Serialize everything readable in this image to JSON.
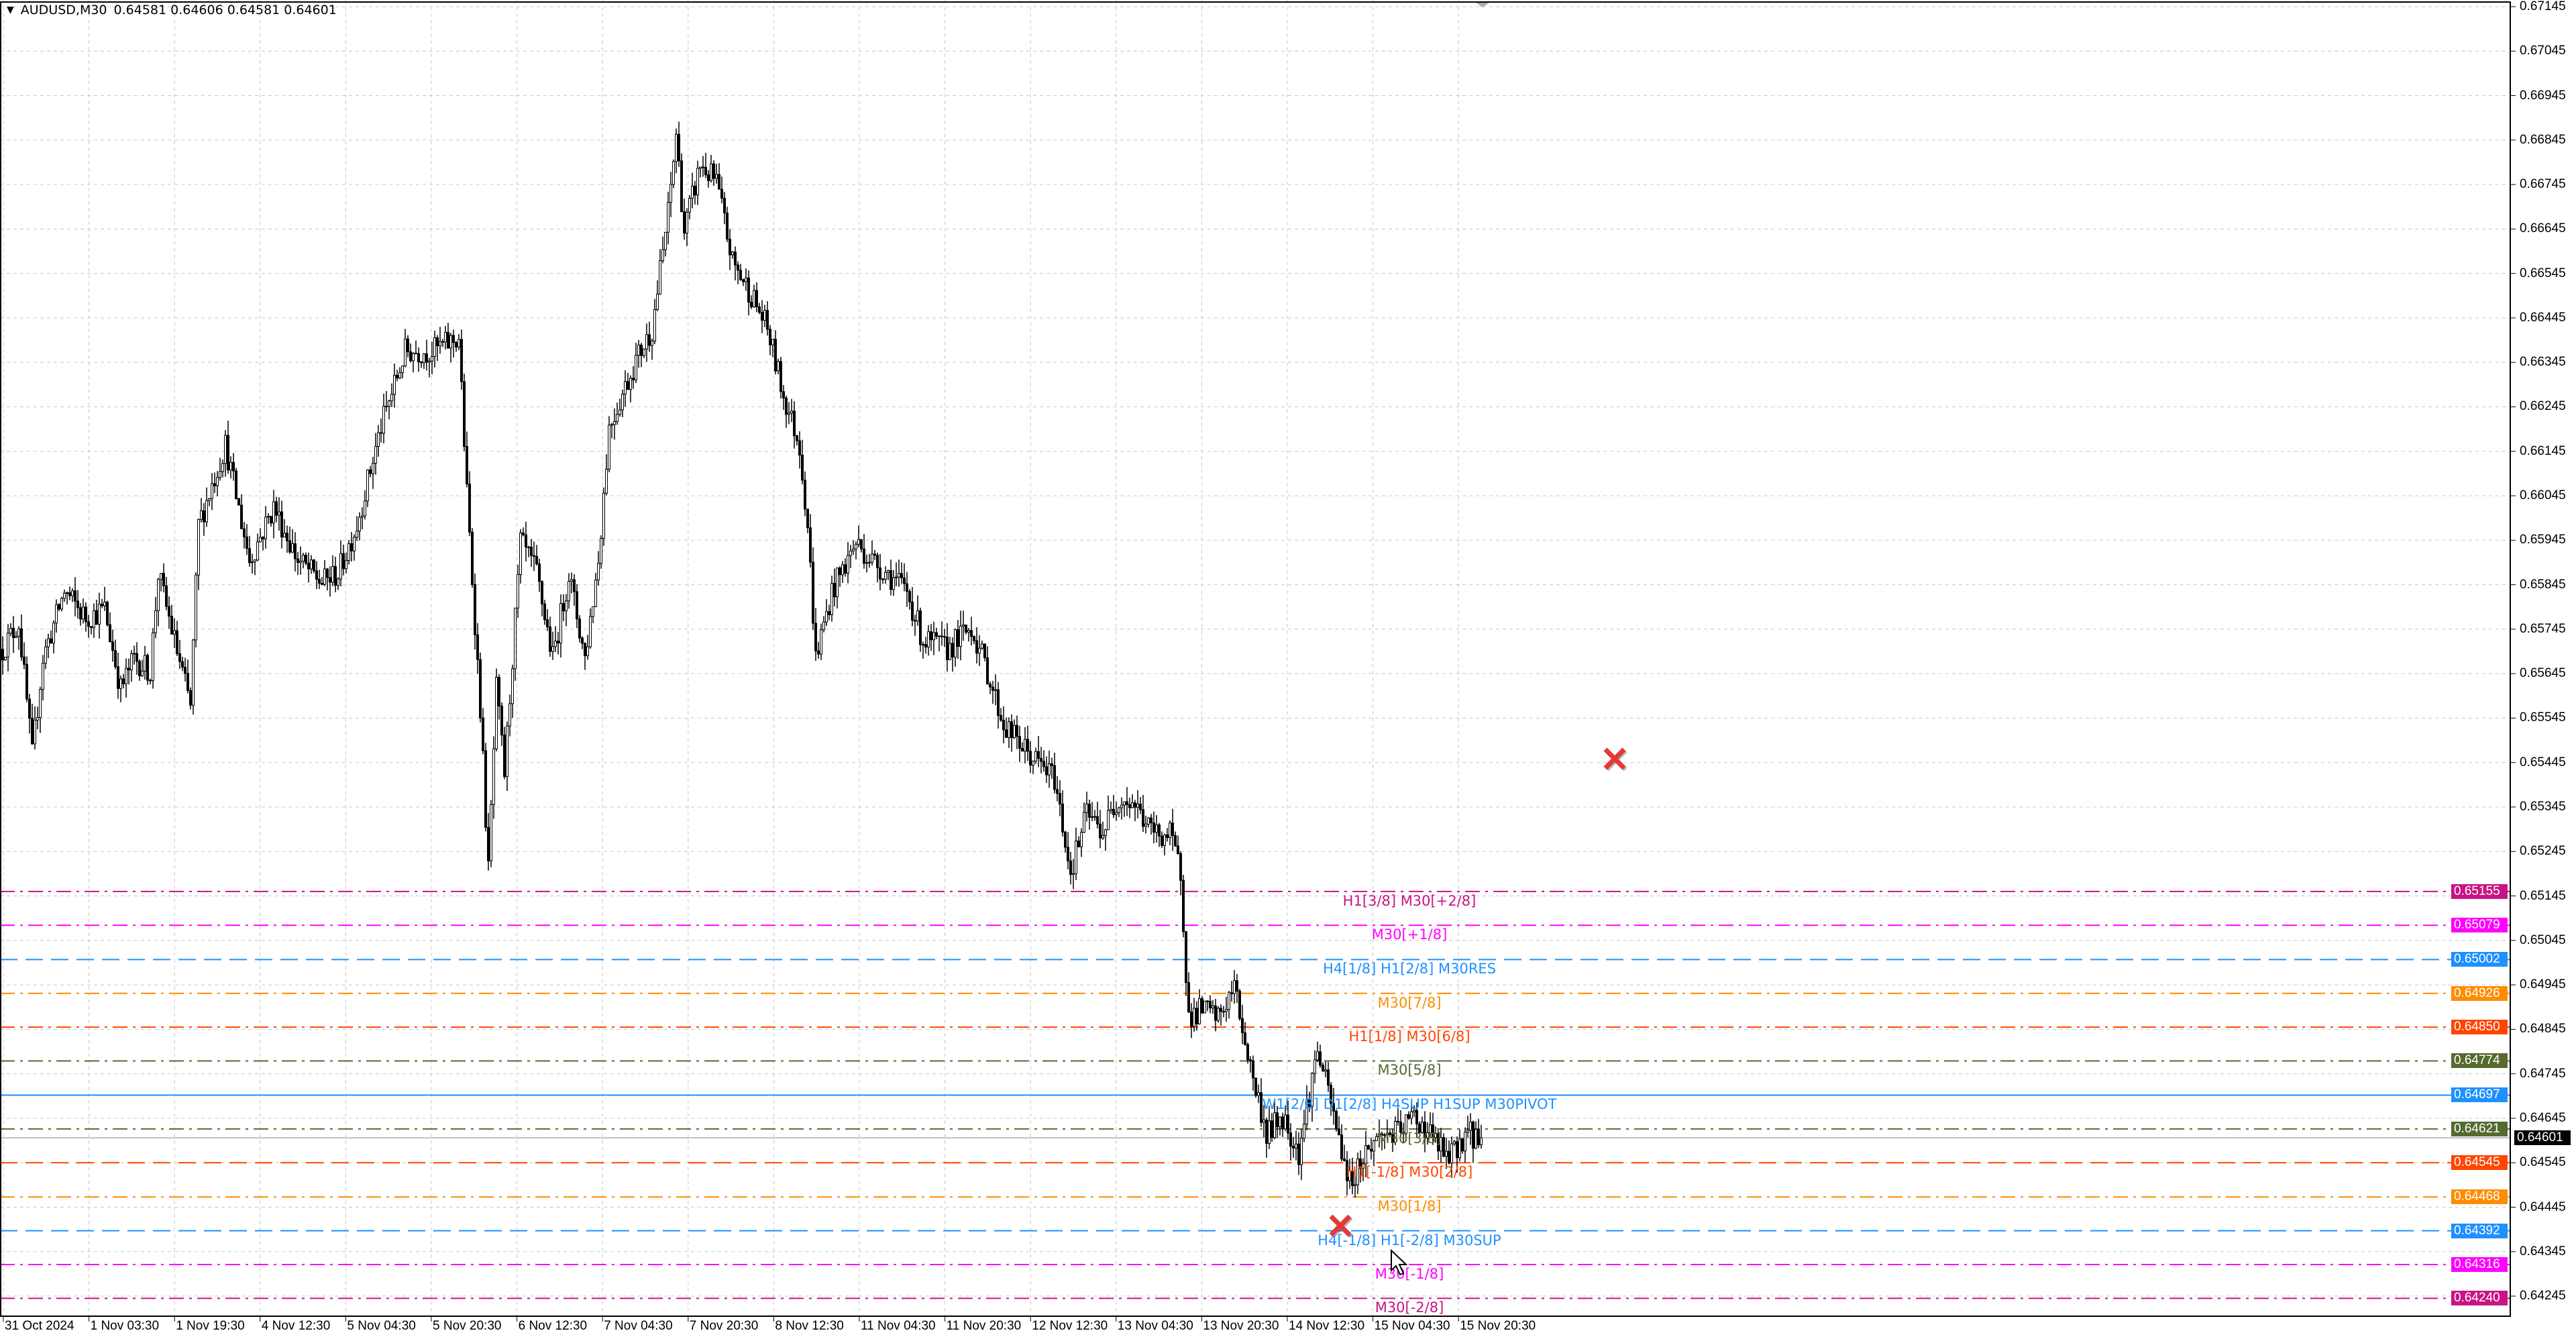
{
  "header": {
    "symbol": "AUDUSD,M30",
    "open": "0.64581",
    "high": "0.64606",
    "low": "0.64581",
    "close": "0.64601"
  },
  "chart_data": {
    "type": "candlestick",
    "timeframe": "M30",
    "price_range": [
      0.6424,
      0.67145
    ],
    "price_ticks": [
      "0.67145",
      "0.67045",
      "0.66945",
      "0.66845",
      "0.66745",
      "0.66645",
      "0.66545",
      "0.66445",
      "0.66345",
      "0.66245",
      "0.66145",
      "0.66045",
      "0.65945",
      "0.65845",
      "0.65745",
      "0.65645",
      "0.65545",
      "0.65445",
      "0.65345",
      "0.65245",
      "0.65145",
      "0.65045",
      "0.64945",
      "0.64845",
      "0.64745",
      "0.64645",
      "0.64545",
      "0.64445",
      "0.64345",
      "0.64245"
    ],
    "time_ticks": [
      "31 Oct 2024",
      "1 Nov 03:30",
      "1 Nov 19:30",
      "4 Nov 12:30",
      "5 Nov 04:30",
      "5 Nov 20:30",
      "6 Nov 12:30",
      "7 Nov 04:30",
      "7 Nov 20:30",
      "8 Nov 12:30",
      "11 Nov 04:30",
      "11 Nov 20:30",
      "12 Nov 12:30",
      "13 Nov 04:30",
      "13 Nov 20:30",
      "14 Nov 12:30",
      "15 Nov 04:30",
      "15 Nov 20:30"
    ],
    "approx_close_path": [
      [
        0,
        0.657
      ],
      [
        6,
        0.6576
      ],
      [
        11,
        0.6546
      ],
      [
        15,
        0.6568
      ],
      [
        23,
        0.6583
      ],
      [
        31,
        0.6577
      ],
      [
        38,
        0.6579
      ],
      [
        44,
        0.6561
      ],
      [
        49,
        0.6568
      ],
      [
        55,
        0.6565
      ],
      [
        58,
        0.6587
      ],
      [
        64,
        0.6572
      ],
      [
        70,
        0.6557
      ],
      [
        73,
        0.6598
      ],
      [
        83,
        0.6616
      ],
      [
        92,
        0.659
      ],
      [
        101,
        0.6602
      ],
      [
        110,
        0.659
      ],
      [
        119,
        0.6585
      ],
      [
        125,
        0.6587
      ],
      [
        132,
        0.6598
      ],
      [
        141,
        0.662
      ],
      [
        150,
        0.6637
      ],
      [
        160,
        0.6637
      ],
      [
        170,
        0.664
      ],
      [
        173,
        0.6605
      ],
      [
        178,
        0.6557
      ],
      [
        181,
        0.652
      ],
      [
        184,
        0.6561
      ],
      [
        187,
        0.6542
      ],
      [
        193,
        0.6594
      ],
      [
        199,
        0.6587
      ],
      [
        205,
        0.6568
      ],
      [
        211,
        0.6587
      ],
      [
        217,
        0.6568
      ],
      [
        222,
        0.659
      ],
      [
        226,
        0.662
      ],
      [
        236,
        0.6635
      ],
      [
        242,
        0.6642
      ],
      [
        248,
        0.6668
      ],
      [
        251,
        0.6686
      ],
      [
        254,
        0.6664
      ],
      [
        260,
        0.6679
      ],
      [
        266,
        0.6675
      ],
      [
        272,
        0.6657
      ],
      [
        278,
        0.6651
      ],
      [
        285,
        0.6642
      ],
      [
        291,
        0.6627
      ],
      [
        297,
        0.6616
      ],
      [
        300,
        0.6598
      ],
      [
        303,
        0.6568
      ],
      [
        309,
        0.6583
      ],
      [
        318,
        0.6594
      ],
      [
        324,
        0.659
      ],
      [
        330,
        0.6587
      ],
      [
        337,
        0.6583
      ],
      [
        343,
        0.6572
      ],
      [
        352,
        0.657
      ],
      [
        361,
        0.6575
      ],
      [
        367,
        0.6565
      ],
      [
        373,
        0.6553
      ],
      [
        383,
        0.6546
      ],
      [
        392,
        0.6541
      ],
      [
        398,
        0.652
      ],
      [
        404,
        0.6533
      ],
      [
        410,
        0.6529
      ],
      [
        416,
        0.6537
      ],
      [
        422,
        0.6535
      ],
      [
        428,
        0.6529
      ],
      [
        435,
        0.6528
      ],
      [
        439,
        0.652
      ],
      [
        442,
        0.6487
      ],
      [
        447,
        0.6489
      ],
      [
        453,
        0.6487
      ],
      [
        459,
        0.6494
      ],
      [
        465,
        0.6476
      ],
      [
        471,
        0.6461
      ],
      [
        477,
        0.6465
      ],
      [
        483,
        0.6457
      ],
      [
        490,
        0.648
      ],
      [
        496,
        0.6465
      ],
      [
        502,
        0.645
      ],
      [
        508,
        0.6457
      ],
      [
        514,
        0.6461
      ],
      [
        520,
        0.6461
      ],
      [
        526,
        0.6465
      ],
      [
        532,
        0.6461
      ],
      [
        539,
        0.6455
      ],
      [
        545,
        0.6461
      ],
      [
        551,
        0.64601
      ]
    ],
    "levels": [
      {
        "price": "0.65155",
        "label": "H1[3/8] M30[+2/8]",
        "color": "#c71585",
        "style": "dashdot"
      },
      {
        "price": "0.65079",
        "label": "M30[+1/8]",
        "color": "#ff00ff",
        "style": "dashdot"
      },
      {
        "price": "0.65002",
        "label": "H4[1/8] H1[2/8] M30RES",
        "color": "#1e90ff",
        "style": "dash"
      },
      {
        "price": "0.64926",
        "label": "M30[7/8]",
        "color": "#ff8c00",
        "style": "dashdot"
      },
      {
        "price": "0.64850",
        "label": "H1[1/8] M30[6/8]",
        "color": "#ff4500",
        "style": "dashdot"
      },
      {
        "price": "0.64774",
        "label": "M30[5/8]",
        "color": "#556b2f",
        "style": "dashdot"
      },
      {
        "price": "0.64697",
        "label": "W1[2/8] D1[2/8] H4SUP H1SUP M30PIVOT",
        "color": "#1e90ff",
        "style": "solid"
      },
      {
        "price": "0.64621",
        "label": "M30[3/8]",
        "color": "#556b2f",
        "style": "dashdot"
      },
      {
        "price": "0.64545",
        "label": "H1[-1/8] M30[2/8]",
        "color": "#ff4500",
        "style": "dash"
      },
      {
        "price": "0.64468",
        "label": "M30[1/8]",
        "color": "#ff8c00",
        "style": "dashdot"
      },
      {
        "price": "0.64392",
        "label": "H4[-1/8] H1[-2/8] M30SUP",
        "color": "#1e90ff",
        "style": "dash"
      },
      {
        "price": "0.64316",
        "label": "M30[-1/8]",
        "color": "#ff00ff",
        "style": "dashdot"
      },
      {
        "price": "0.64240",
        "label": "M30[-2/8]",
        "color": "#c71585",
        "style": "dashdot"
      }
    ],
    "bid_price": "0.64601",
    "bid_color": "#000000",
    "markers": [
      {
        "icon": "red-x-icon",
        "price": 0.6545
      },
      {
        "icon": "red-x-icon",
        "price": 0.6435
      }
    ]
  }
}
